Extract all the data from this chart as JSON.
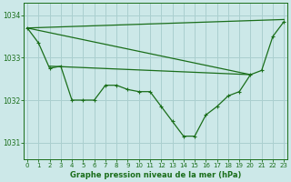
{
  "title": "Graphe pression niveau de la mer (hPa)",
  "background_color": "#cce8e8",
  "grid_color": "#aacfcf",
  "line_color": "#1a6e1a",
  "ylim": [
    1030.6,
    1034.3
  ],
  "yticks": [
    1031,
    1032,
    1033,
    1034
  ],
  "xlim": [
    -0.3,
    23.3
  ],
  "xticks": [
    0,
    1,
    2,
    3,
    4,
    5,
    6,
    7,
    8,
    9,
    10,
    11,
    12,
    13,
    14,
    15,
    16,
    17,
    18,
    19,
    20,
    21,
    22,
    23
  ],
  "line_main": {
    "x": [
      0,
      1,
      2,
      3,
      4,
      5,
      6,
      7,
      8,
      9,
      10,
      11,
      12,
      13,
      14,
      15,
      16,
      17,
      18,
      19,
      20,
      21,
      22,
      23
    ],
    "y": [
      1033.7,
      1033.35,
      1032.75,
      1032.8,
      1032.0,
      1032.0,
      1032.0,
      1032.35,
      1032.35,
      1032.25,
      1032.2,
      1032.2,
      1031.85,
      1031.5,
      1031.15,
      1031.15,
      1031.65,
      1031.85,
      1032.1,
      1032.2,
      1032.6,
      1032.7,
      1033.5,
      1033.85
    ]
  },
  "line_upper_straight": {
    "x": [
      0,
      23
    ],
    "y": [
      1033.7,
      1033.9
    ]
  },
  "line_mid1": {
    "x": [
      2,
      20
    ],
    "y": [
      1032.75,
      1032.6
    ]
  },
  "line_mid2": {
    "x": [
      2,
      20
    ],
    "y": [
      1032.8,
      1032.6
    ]
  },
  "line_flat": {
    "x": [
      3,
      20
    ],
    "y": [
      1032.8,
      1032.6
    ]
  }
}
